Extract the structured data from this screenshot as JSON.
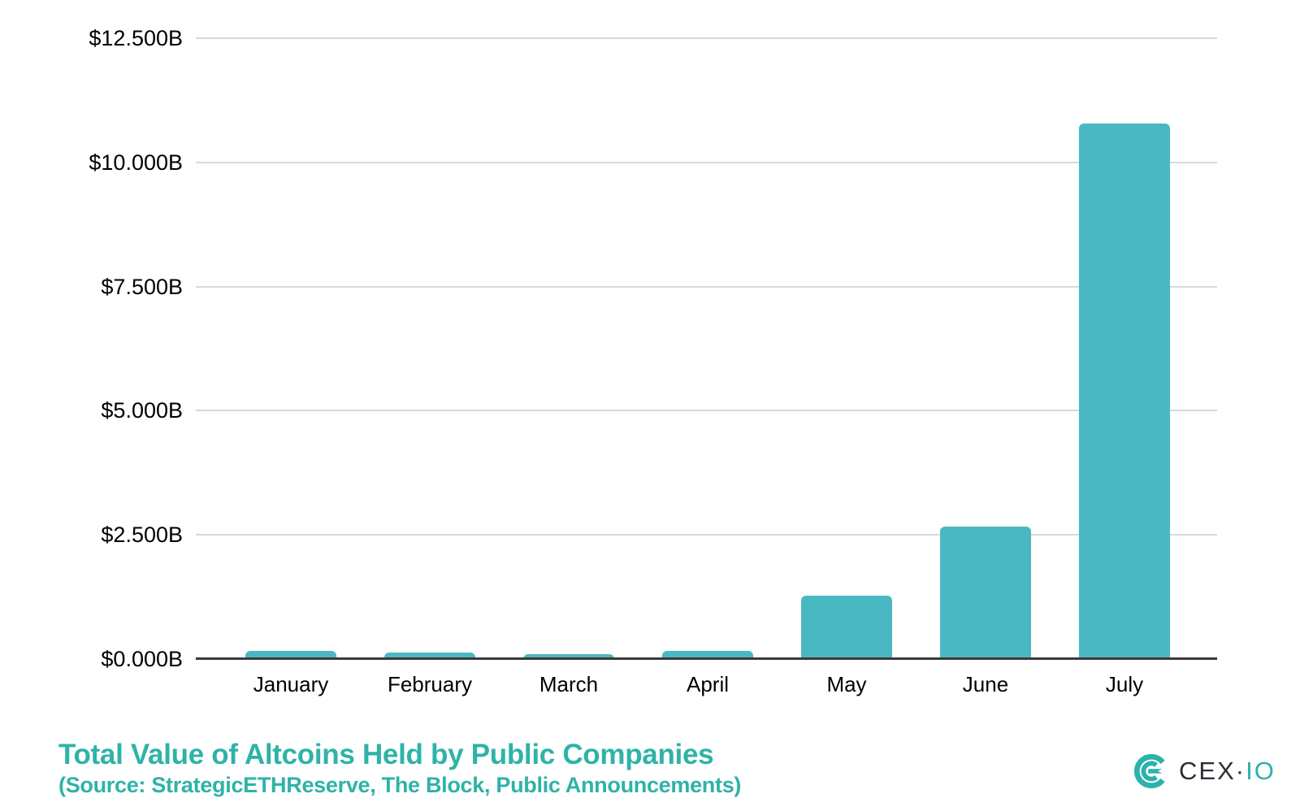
{
  "chart_data": {
    "type": "bar",
    "title": "Total Value of Altcoins Held by Public Companies",
    "source_note": "(Source: StrategicETHReserve, The Block, Public Announcements)",
    "categories": [
      "January",
      "February",
      "March",
      "April",
      "May",
      "June",
      "July"
    ],
    "values": [
      0.16,
      0.13,
      0.1,
      0.17,
      1.27,
      2.67,
      10.78
    ],
    "values_unit": "USD billions",
    "y_tick_labels": [
      "$0.000B",
      "$2.500B",
      "$5.000B",
      "$7.500B",
      "$10.000B",
      "$12.500B"
    ],
    "y_tick_values": [
      0,
      2.5,
      5,
      7.5,
      10,
      12.5
    ],
    "ylim": [
      0,
      12.5
    ],
    "grid": true,
    "legend": false
  },
  "colors": {
    "bar": "#4ab8c3",
    "title_text": "#2eb3a7",
    "gridline": "#d9d9d9",
    "axis_line": "#3a3a3a",
    "tick_label": "#000000",
    "logo_teal": "#2cb2aa",
    "logo_dark": "#2b2f36"
  },
  "logo": {
    "text_primary": "CEX",
    "separator": "·",
    "text_secondary": "IO",
    "mark_icon": "cexio-concentric-c-mark"
  }
}
